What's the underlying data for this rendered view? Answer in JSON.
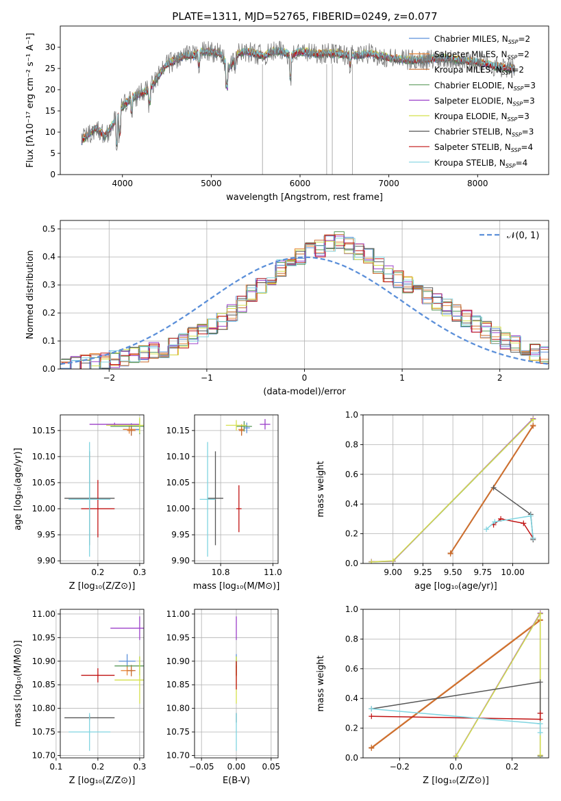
{
  "colors": {
    "Chabrier MILES": "#5b8fd9",
    "Salpeter MILES": "#e8873a",
    "Kroupa MILES": "#c86a2c",
    "Chabrier ELODIE": "#5a9a5a",
    "Salpeter ELODIE": "#9b3fc9",
    "Kroupa ELODIE": "#d4e04a",
    "Chabrier STELIB": "#555555",
    "Salpeter STELIB": "#c01010",
    "Kroupa STELIB": "#7fd4e0",
    "normal": "#5b8fd9"
  },
  "chart_data": [
    {
      "type": "line",
      "title": "PLATE=1311, MJD=52765, FIBERID=0249, z=0.077",
      "xlabel": "wavelength [Angstrom, rest frame]",
      "ylabel": "Flux [fλ10⁻¹⁷ erg cm⁻² s⁻¹ A⁻¹]",
      "xlim": [
        3300,
        8800
      ],
      "ylim": [
        0,
        35
      ],
      "xticks": [
        4000,
        5000,
        6000,
        7000,
        8000
      ],
      "yticks": [
        0,
        5,
        10,
        15,
        20,
        25,
        30
      ],
      "grid": false,
      "legend": [
        {
          "label": "Chabrier MILES, N",
          "sub": "SSP",
          "suffix": "=2"
        },
        {
          "label": "Salpeter MILES, N",
          "sub": "SSP",
          "suffix": "=2"
        },
        {
          "label": "Kroupa MILES, N",
          "sub": "SSP",
          "suffix": "=2"
        },
        {
          "label": "Chabrier ELODIE, N",
          "sub": "SSP",
          "suffix": "=3"
        },
        {
          "label": "Salpeter ELODIE, N",
          "sub": "SSP",
          "suffix": "=3"
        },
        {
          "label": "Kroupa ELODIE, N",
          "sub": "SSP",
          "suffix": "=3"
        },
        {
          "label": "Chabrier STELIB, N",
          "sub": "SSP",
          "suffix": "=3"
        },
        {
          "label": "Salpeter STELIB, N",
          "sub": "SSP",
          "suffix": "=4"
        },
        {
          "label": "Kroupa STELIB, N",
          "sub": "SSP",
          "suffix": "=4"
        }
      ],
      "spectrum_envelope": {
        "x": [
          3540,
          3700,
          3800,
          3900,
          4000,
          4100,
          4200,
          4300,
          4400,
          4500,
          4600,
          4700,
          4800,
          4900,
          5000,
          5100,
          5200,
          5300,
          5400,
          5500,
          5600,
          5700,
          5800,
          5900,
          6000,
          6200,
          6400,
          6600,
          6800,
          7000,
          7200,
          7400,
          7600,
          7800,
          8000,
          8200,
          8400
        ],
        "y": [
          8,
          11,
          9,
          12,
          16,
          18,
          19,
          20,
          23,
          26,
          27,
          28,
          28,
          29,
          29,
          28.5,
          25,
          28.5,
          29,
          28.5,
          28,
          29,
          29,
          28,
          29,
          28.5,
          28.5,
          28,
          28.5,
          27.5,
          27,
          27,
          27.5,
          27,
          26.5,
          25.5,
          25
        ]
      },
      "sky_lines": [
        5577,
        6300,
        6363,
        6590
      ]
    },
    {
      "type": "histogram",
      "xlabel": "(data-model)/error",
      "ylabel": "Normed distribution",
      "xlim": [
        -2.5,
        2.5
      ],
      "ylim": [
        0,
        0.53
      ],
      "xticks": [
        -2,
        -1,
        0,
        1,
        2
      ],
      "yticks": [
        0.0,
        0.1,
        0.2,
        0.3,
        0.4,
        0.5
      ],
      "grid": true,
      "legend": "$\\mathcal{N}(0,1)$",
      "bin_width": 0.1,
      "series_offsets": [
        0,
        0.01,
        0.02,
        0.03,
        0.04,
        0.05,
        0.06,
        0.07,
        0.08
      ],
      "centers": [
        -2.45,
        -2.35,
        -2.25,
        -2.15,
        -2.05,
        -1.95,
        -1.85,
        -1.75,
        -1.65,
        -1.55,
        -1.45,
        -1.35,
        -1.25,
        -1.15,
        -1.05,
        -0.95,
        -0.85,
        -0.75,
        -0.65,
        -0.55,
        -0.45,
        -0.35,
        -0.25,
        -0.15,
        -0.05,
        0.05,
        0.15,
        0.25,
        0.35,
        0.45,
        0.55,
        0.65,
        0.75,
        0.85,
        0.95,
        1.05,
        1.15,
        1.25,
        1.35,
        1.45,
        1.55,
        1.65,
        1.75,
        1.85,
        1.95,
        2.05,
        2.15,
        2.25,
        2.35,
        2.45
      ],
      "values": [
        0.01,
        0.015,
        0.02,
        0.025,
        0.03,
        0.035,
        0.04,
        0.05,
        0.055,
        0.065,
        0.07,
        0.08,
        0.1,
        0.12,
        0.13,
        0.15,
        0.17,
        0.2,
        0.23,
        0.27,
        0.3,
        0.33,
        0.36,
        0.38,
        0.4,
        0.42,
        0.43,
        0.45,
        0.46,
        0.44,
        0.42,
        0.4,
        0.37,
        0.34,
        0.32,
        0.3,
        0.28,
        0.26,
        0.24,
        0.22,
        0.2,
        0.18,
        0.16,
        0.14,
        0.12,
        0.1,
        0.09,
        0.07,
        0.06,
        0.05
      ]
    },
    {
      "type": "scatter",
      "xlabel": "Z [log₁₀(Z/Z⊙)]",
      "ylabel": "age  [log₁₀(age/yr)]",
      "xlim": [
        0.11,
        0.31
      ],
      "ylim": [
        9.895,
        10.18
      ],
      "xticks": [
        0.2,
        0.3
      ],
      "yticks": [
        9.9,
        9.95,
        10.0,
        10.05,
        10.1,
        10.15
      ],
      "grid": true,
      "points": [
        {
          "series": "Chabrier MILES",
          "x": 0.28,
          "y": 10.152,
          "xerr": 0.02,
          "yerr": 0.012
        },
        {
          "series": "Salpeter MILES",
          "x": 0.275,
          "y": 10.152,
          "xerr": 0.015,
          "yerr": 0.008
        },
        {
          "series": "Kroupa MILES",
          "x": 0.28,
          "y": 10.15,
          "xerr": 0.01,
          "yerr": 0.01
        },
        {
          "series": "Chabrier ELODIE",
          "x": 0.3,
          "y": 10.158,
          "xerr": 0.07,
          "yerr": 0.015
        },
        {
          "series": "Salpeter ELODIE",
          "x": 0.24,
          "y": 10.162,
          "xerr": 0.06,
          "yerr": 0.003
        },
        {
          "series": "Kroupa ELODIE",
          "x": 0.3,
          "y": 10.16,
          "xerr": 0.08,
          "yerr": 0.015
        },
        {
          "series": "Chabrier STELIB",
          "x": 0.18,
          "y": 10.02,
          "xerr": 0.06,
          "yerr": 0.09
        },
        {
          "series": "Salpeter STELIB",
          "x": 0.2,
          "y": 10.0,
          "xerr": 0.04,
          "yerr": 0.055
        },
        {
          "series": "Kroupa STELIB",
          "x": 0.18,
          "y": 10.018,
          "xerr": 0.05,
          "yerr": 0.11
        }
      ]
    },
    {
      "type": "scatter",
      "xlabel": "mass [log₁₀(M/M⊙)]",
      "ylabel": "",
      "xlim": [
        10.7,
        11.02
      ],
      "ylim": [
        9.895,
        10.18
      ],
      "xticks": [
        10.8,
        11.0
      ],
      "yticks": [
        9.9,
        9.95,
        10.0,
        10.05,
        10.1,
        10.15
      ],
      "grid": true,
      "points": [
        {
          "series": "Chabrier MILES",
          "x": 10.9,
          "y": 10.155,
          "xerr": 0.012,
          "yerr": 0.01
        },
        {
          "series": "Salpeter MILES",
          "x": 10.88,
          "y": 10.152,
          "xerr": 0.012,
          "yerr": 0.01
        },
        {
          "series": "Kroupa MILES",
          "x": 10.88,
          "y": 10.15,
          "xerr": 0.01,
          "yerr": 0.01
        },
        {
          "series": "Chabrier ELODIE",
          "x": 10.89,
          "y": 10.158,
          "xerr": 0.03,
          "yerr": 0.01
        },
        {
          "series": "Salpeter ELODIE",
          "x": 10.97,
          "y": 10.162,
          "xerr": 0.02,
          "yerr": 0.01
        },
        {
          "series": "Kroupa ELODIE",
          "x": 10.86,
          "y": 10.16,
          "xerr": 0.04,
          "yerr": 0.01
        },
        {
          "series": "Chabrier STELIB",
          "x": 10.78,
          "y": 10.02,
          "xerr": 0.03,
          "yerr": 0.09
        },
        {
          "series": "Salpeter STELIB",
          "x": 10.87,
          "y": 10.0,
          "xerr": 0.01,
          "yerr": 0.045
        },
        {
          "series": "Kroupa STELIB",
          "x": 10.75,
          "y": 10.018,
          "xerr": 0.03,
          "yerr": 0.11
        }
      ]
    },
    {
      "type": "line",
      "xlabel": "age  [log₁₀(age/yr)]",
      "ylabel": "mass weight",
      "xlim": [
        8.75,
        10.3
      ],
      "ylim": [
        0.0,
        1.0
      ],
      "xticks": [
        9.0,
        9.25,
        9.5,
        9.75,
        10.0
      ],
      "xtick_labels": [
        "9.00",
        "9.25",
        "9.50",
        "9.75",
        "10.00"
      ],
      "yticks": [
        0.0,
        0.2,
        0.4,
        0.6,
        0.8,
        1.0
      ],
      "grid": true,
      "series": [
        {
          "name": "Chabrier MILES",
          "x": [
            9.48,
            10.17
          ],
          "y": [
            0.07,
            0.93
          ]
        },
        {
          "name": "Salpeter MILES",
          "x": [
            9.48,
            10.17
          ],
          "y": [
            0.07,
            0.93
          ]
        },
        {
          "name": "Kroupa MILES",
          "x": [
            9.48,
            10.17
          ],
          "y": [
            0.065,
            0.925
          ]
        },
        {
          "name": "Chabrier ELODIE",
          "x": [
            8.82,
            9.0,
            10.17
          ],
          "y": [
            0.01,
            0.015,
            0.97
          ]
        },
        {
          "name": "Salpeter ELODIE",
          "x": [
            8.82,
            9.0,
            10.17
          ],
          "y": [
            0.012,
            0.015,
            0.975
          ]
        },
        {
          "name": "Kroupa ELODIE",
          "x": [
            8.82,
            9.0,
            10.17
          ],
          "y": [
            0.01,
            0.018,
            0.97
          ]
        },
        {
          "name": "Chabrier STELIB",
          "x": [
            9.84,
            10.15,
            10.17
          ],
          "y": [
            0.51,
            0.33,
            0.16
          ]
        },
        {
          "name": "Salpeter STELIB",
          "x": [
            9.84,
            9.9,
            10.09,
            10.17
          ],
          "y": [
            0.26,
            0.3,
            0.27,
            0.17
          ]
        },
        {
          "name": "Kroupa STELIB",
          "x": [
            9.78,
            9.85,
            10.15,
            10.17
          ],
          "y": [
            0.23,
            0.28,
            0.32,
            0.17
          ]
        }
      ]
    },
    {
      "type": "scatter",
      "xlabel": "Z [log₁₀(Z/Z⊙)]",
      "ylabel": "mass [log₁₀(M/M⊙)]",
      "xlim": [
        0.11,
        0.31
      ],
      "ylim": [
        10.695,
        11.01
      ],
      "xticks": [
        0.1,
        0.2,
        0.3
      ],
      "yticks": [
        10.7,
        10.75,
        10.8,
        10.85,
        10.9,
        10.95,
        11.0
      ],
      "grid": true,
      "points": [
        {
          "series": "Chabrier MILES",
          "x": 0.27,
          "y": 10.9,
          "xerr": 0.02,
          "yerr": 0.015
        },
        {
          "series": "Salpeter MILES",
          "x": 0.27,
          "y": 10.88,
          "xerr": 0.015,
          "yerr": 0.01
        },
        {
          "series": "Kroupa MILES",
          "x": 0.28,
          "y": 10.88,
          "xerr": 0.01,
          "yerr": 0.012
        },
        {
          "series": "Chabrier ELODIE",
          "x": 0.3,
          "y": 10.89,
          "xerr": 0.06,
          "yerr": 0.02
        },
        {
          "series": "Salpeter ELODIE",
          "x": 0.3,
          "y": 10.97,
          "xerr": 0.07,
          "yerr": 0.025
        },
        {
          "series": "Kroupa ELODIE",
          "x": 0.3,
          "y": 10.86,
          "xerr": 0.06,
          "yerr": 0.05
        },
        {
          "series": "Chabrier STELIB",
          "x": 0.18,
          "y": 10.78,
          "xerr": 0.06,
          "yerr": 0.005
        },
        {
          "series": "Salpeter STELIB",
          "x": 0.2,
          "y": 10.87,
          "xerr": 0.04,
          "yerr": 0.015
        },
        {
          "series": "Kroupa STELIB",
          "x": 0.18,
          "y": 10.75,
          "xerr": 0.05,
          "yerr": 0.04
        }
      ]
    },
    {
      "type": "scatter",
      "xlabel": "E(B-V)",
      "ylabel": "",
      "xlim": [
        -0.06,
        0.06
      ],
      "ylim": [
        10.695,
        11.01
      ],
      "xticks": [
        -0.05,
        0.0,
        0.05
      ],
      "xtick_labels": [
        "−0.05",
        "0.00",
        "0.05"
      ],
      "yticks": [
        10.7,
        10.75,
        10.8,
        10.85,
        10.9,
        10.95,
        11.0
      ],
      "grid": true,
      "points": [
        {
          "series": "Chabrier MILES",
          "x": 0,
          "y": 10.9,
          "xerr": 0,
          "yerr": 0.015
        },
        {
          "series": "Salpeter MILES",
          "x": 0,
          "y": 10.88,
          "xerr": 0,
          "yerr": 0.01
        },
        {
          "series": "Kroupa MILES",
          "x": 0,
          "y": 10.88,
          "xerr": 0,
          "yerr": 0.012
        },
        {
          "series": "Chabrier ELODIE",
          "x": 0,
          "y": 10.89,
          "xerr": 0,
          "yerr": 0.02
        },
        {
          "series": "Salpeter ELODIE",
          "x": 0,
          "y": 10.97,
          "xerr": 0,
          "yerr": 0.025
        },
        {
          "series": "Kroupa ELODIE",
          "x": 0,
          "y": 10.86,
          "xerr": 0,
          "yerr": 0.05
        },
        {
          "series": "Chabrier STELIB",
          "x": 0,
          "y": 10.78,
          "xerr": 0,
          "yerr": 0.01
        },
        {
          "series": "Salpeter STELIB",
          "x": 0,
          "y": 10.87,
          "xerr": 0,
          "yerr": 0.03
        },
        {
          "series": "Kroupa STELIB",
          "x": 0,
          "y": 10.75,
          "xerr": 0,
          "yerr": 0.04
        }
      ]
    },
    {
      "type": "line",
      "xlabel": "Z [log₁₀(Z/Z⊙)]",
      "ylabel": "mass weight",
      "xlim": [
        -0.33,
        0.33
      ],
      "ylim": [
        0.0,
        1.0
      ],
      "xticks": [
        -0.2,
        0.0,
        0.2
      ],
      "xtick_labels": [
        "−0.2",
        "0.0",
        "0.2"
      ],
      "yticks": [
        0.0,
        0.2,
        0.4,
        0.6,
        0.8,
        1.0
      ],
      "grid": true,
      "series": [
        {
          "name": "Chabrier MILES",
          "x": [
            -0.3,
            0.3
          ],
          "y": [
            0.07,
            0.93
          ]
        },
        {
          "name": "Salpeter MILES",
          "x": [
            -0.3,
            0.3
          ],
          "y": [
            0.07,
            0.93
          ]
        },
        {
          "name": "Kroupa MILES",
          "x": [
            -0.3,
            0.3
          ],
          "y": [
            0.065,
            0.925
          ]
        },
        {
          "name": "Chabrier ELODIE",
          "x": [
            0.0,
            0.3,
            0.3
          ],
          "y": [
            0.01,
            0.97,
            0.01
          ]
        },
        {
          "name": "Salpeter ELODIE",
          "x": [
            0.0,
            0.3,
            0.3
          ],
          "y": [
            0.012,
            0.975,
            0.015
          ]
        },
        {
          "name": "Kroupa ELODIE",
          "x": [
            0.0,
            0.3,
            0.3
          ],
          "y": [
            0.01,
            0.97,
            0.018
          ]
        },
        {
          "name": "Chabrier STELIB",
          "x": [
            -0.3,
            0.3,
            0.3
          ],
          "y": [
            0.33,
            0.51,
            0.3
          ]
        },
        {
          "name": "Salpeter STELIB",
          "x": [
            -0.3,
            0.3,
            0.3
          ],
          "y": [
            0.28,
            0.26,
            0.3
          ]
        },
        {
          "name": "Kroupa STELIB",
          "x": [
            -0.3,
            0.3,
            0.3
          ],
          "y": [
            0.33,
            0.23,
            0.17
          ]
        }
      ]
    }
  ]
}
